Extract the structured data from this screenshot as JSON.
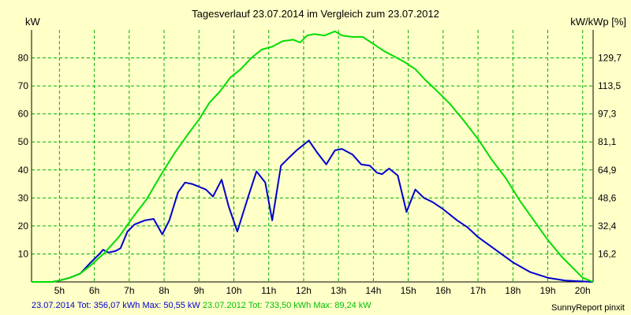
{
  "chart_data": {
    "type": "line",
    "title": "Tagesverlauf 23.07.2014 im Vergleich zum 23.07.2012",
    "ylabel": "kW",
    "ylabel_right": "kW/kWp [%]",
    "xlabel": "",
    "x_categories": [
      "5h",
      "6h",
      "7h",
      "8h",
      "9h",
      "10h",
      "11h",
      "12h",
      "13h",
      "14h",
      "15h",
      "16h",
      "17h",
      "18h",
      "19h",
      "20h"
    ],
    "x_range": [
      4.2,
      20.3
    ],
    "ylim": [
      0,
      90
    ],
    "y_ticks": [
      10,
      20,
      30,
      40,
      50,
      60,
      70,
      80
    ],
    "y2_ticks": [
      "16,2",
      "32,4",
      "48,6",
      "64,9",
      "81,1",
      "97,3",
      "113,5",
      "129,7"
    ],
    "grid": true,
    "series": [
      {
        "name": "23.07.2014",
        "color": "#0000cc",
        "points": [
          [
            4.2,
            0
          ],
          [
            4.8,
            0
          ],
          [
            5.0,
            0.5
          ],
          [
            5.3,
            1.5
          ],
          [
            5.6,
            3
          ],
          [
            5.9,
            7
          ],
          [
            6.15,
            10
          ],
          [
            6.25,
            11.5
          ],
          [
            6.4,
            10.5
          ],
          [
            6.6,
            11
          ],
          [
            6.75,
            12
          ],
          [
            6.95,
            18
          ],
          [
            7.15,
            20.5
          ],
          [
            7.45,
            22
          ],
          [
            7.7,
            22.5
          ],
          [
            7.95,
            17
          ],
          [
            8.15,
            22
          ],
          [
            8.4,
            32
          ],
          [
            8.6,
            35.5
          ],
          [
            8.8,
            35
          ],
          [
            9.0,
            34
          ],
          [
            9.2,
            33
          ],
          [
            9.4,
            30.5
          ],
          [
            9.65,
            36.5
          ],
          [
            9.85,
            27
          ],
          [
            10.1,
            18
          ],
          [
            10.4,
            30
          ],
          [
            10.65,
            39.5
          ],
          [
            10.9,
            35.5
          ],
          [
            11.1,
            22
          ],
          [
            11.35,
            41.5
          ],
          [
            11.55,
            44
          ],
          [
            11.8,
            47
          ],
          [
            12.05,
            49.5
          ],
          [
            12.15,
            50.5
          ],
          [
            12.4,
            46
          ],
          [
            12.65,
            42
          ],
          [
            12.9,
            47
          ],
          [
            13.1,
            47.5
          ],
          [
            13.4,
            45.5
          ],
          [
            13.65,
            42
          ],
          [
            13.9,
            41.5
          ],
          [
            14.1,
            39
          ],
          [
            14.25,
            38.5
          ],
          [
            14.45,
            40.5
          ],
          [
            14.7,
            38
          ],
          [
            14.95,
            25
          ],
          [
            15.2,
            33
          ],
          [
            15.45,
            30
          ],
          [
            15.7,
            28.5
          ],
          [
            16.0,
            26
          ],
          [
            16.4,
            22
          ],
          [
            16.7,
            19.5
          ],
          [
            17.0,
            16
          ],
          [
            17.5,
            11.5
          ],
          [
            18.0,
            7
          ],
          [
            18.5,
            3.5
          ],
          [
            19.0,
            1.5
          ],
          [
            19.5,
            0.5
          ],
          [
            20.3,
            0
          ]
        ]
      },
      {
        "name": "23.07.2012",
        "color": "#00dd00",
        "points": [
          [
            4.2,
            0
          ],
          [
            4.8,
            0
          ],
          [
            5.0,
            0.5
          ],
          [
            5.3,
            1.5
          ],
          [
            5.6,
            3
          ],
          [
            5.9,
            6
          ],
          [
            6.3,
            10.5
          ],
          [
            6.7,
            16
          ],
          [
            7.1,
            23
          ],
          [
            7.5,
            29.5
          ],
          [
            7.9,
            38
          ],
          [
            8.3,
            46
          ],
          [
            8.7,
            53
          ],
          [
            9.0,
            58
          ],
          [
            9.3,
            64
          ],
          [
            9.6,
            68
          ],
          [
            9.9,
            73
          ],
          [
            10.2,
            76
          ],
          [
            10.5,
            80
          ],
          [
            10.8,
            83
          ],
          [
            11.1,
            84
          ],
          [
            11.4,
            86
          ],
          [
            11.7,
            86.5
          ],
          [
            11.9,
            85.5
          ],
          [
            12.1,
            88
          ],
          [
            12.3,
            88.5
          ],
          [
            12.6,
            88
          ],
          [
            12.9,
            89.5
          ],
          [
            13.1,
            88
          ],
          [
            13.4,
            87.5
          ],
          [
            13.7,
            87.5
          ],
          [
            14.0,
            85
          ],
          [
            14.3,
            82.5
          ],
          [
            14.6,
            80.5
          ],
          [
            14.9,
            78.5
          ],
          [
            15.2,
            76
          ],
          [
            15.5,
            72
          ],
          [
            15.8,
            68.5
          ],
          [
            16.2,
            63.5
          ],
          [
            16.6,
            57.5
          ],
          [
            17.0,
            51
          ],
          [
            17.4,
            43.5
          ],
          [
            17.8,
            37
          ],
          [
            18.2,
            29
          ],
          [
            18.6,
            22
          ],
          [
            19.0,
            15
          ],
          [
            19.4,
            9
          ],
          [
            19.8,
            4
          ],
          [
            20.0,
            1.5
          ],
          [
            20.3,
            0
          ]
        ]
      }
    ]
  },
  "footer": {
    "series1_summary": "23.07.2014 Tot: 356,07 kWh Max: 50,55 kW",
    "series2_summary": "23.07.2012 Tot: 733,50 kWh Max: 89,24 kW",
    "credit": "SunnyReport pinxit"
  }
}
